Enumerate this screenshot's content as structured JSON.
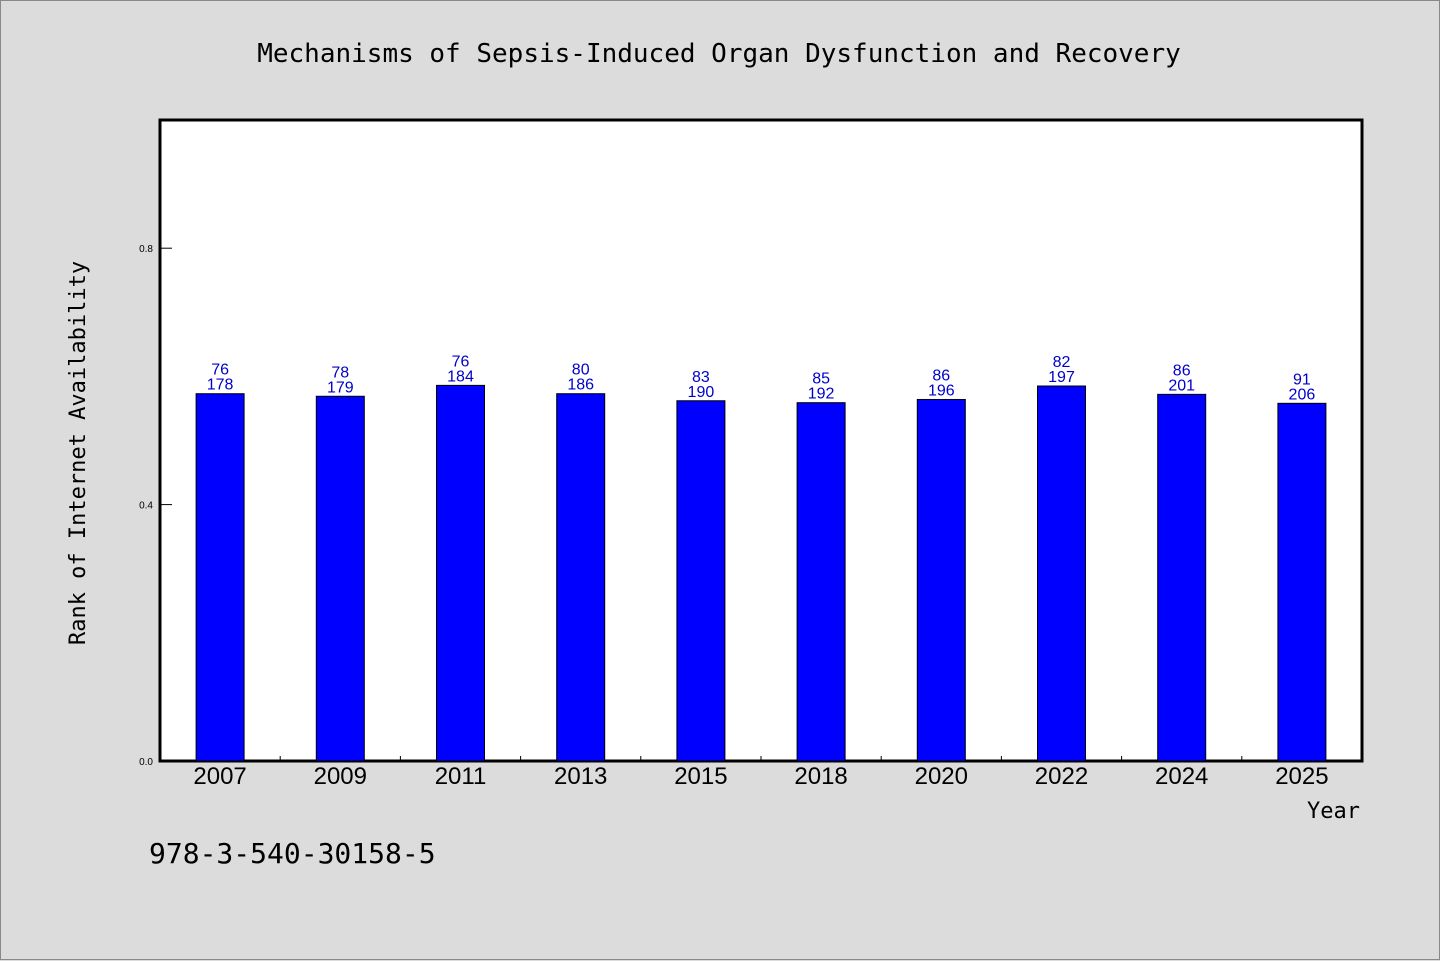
{
  "chart_data": {
    "type": "bar",
    "title": "Mechanisms of Sepsis-Induced Organ Dysfunction and Recovery",
    "xlabel": "Year",
    "ylabel": "Rank of Internet Availability",
    "categories": [
      "2007",
      "2009",
      "2011",
      "2013",
      "2015",
      "2018",
      "2020",
      "2022",
      "2024",
      "2025"
    ],
    "values": [
      0.573,
      0.569,
      0.586,
      0.573,
      0.562,
      0.559,
      0.564,
      0.585,
      0.572,
      0.558
    ],
    "bar_labels_top": [
      "76",
      "78",
      "76",
      "80",
      "83",
      "85",
      "86",
      "82",
      "86",
      "91"
    ],
    "bar_labels_bottom": [
      "178",
      "179",
      "184",
      "186",
      "190",
      "192",
      "196",
      "197",
      "201",
      "206"
    ],
    "yticks": [
      0.0,
      0.4,
      0.8
    ],
    "ytick_labels": [
      "0.0",
      "0.4",
      "0.8"
    ],
    "ylim": [
      0,
      1.0
    ],
    "grid": false,
    "bar_color": "#0000ff",
    "label_color": "#0000cc",
    "background": "#dcdcdc",
    "plot_background": "#ffffff"
  },
  "footer": {
    "isbn": "978-3-540-30158-5"
  }
}
